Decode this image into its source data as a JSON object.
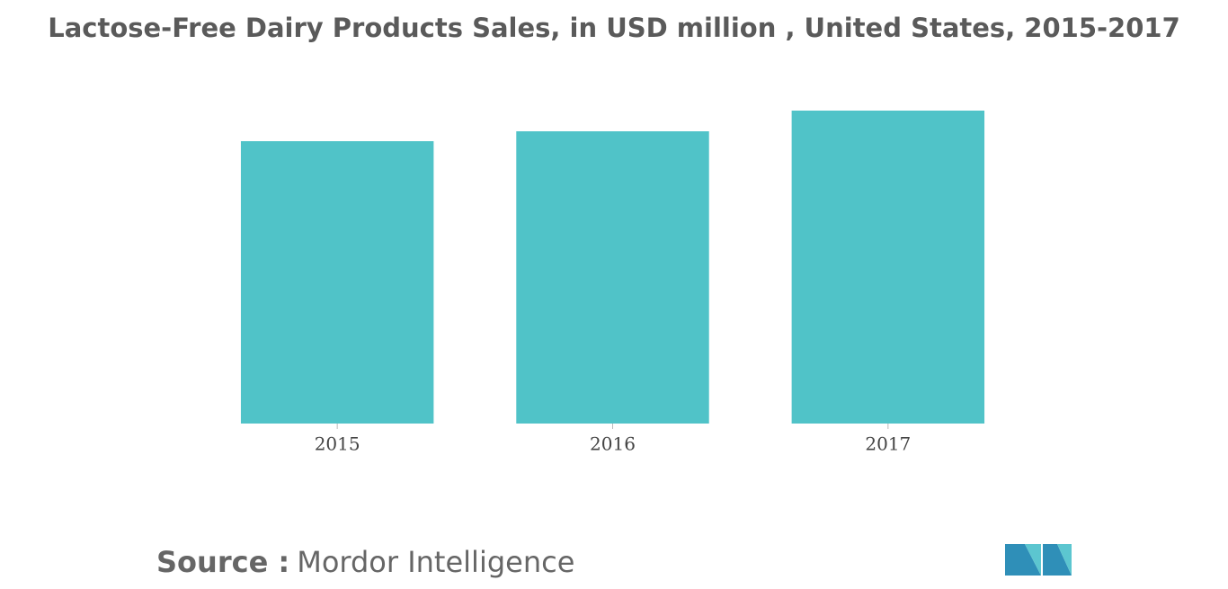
{
  "chart_data": {
    "type": "bar",
    "title": "Lactose-Free Dairy Products Sales, in USD million , United States, 2015-2017",
    "categories": [
      "2015",
      "2016",
      "2017"
    ],
    "values": [
      314,
      325,
      348
    ],
    "color": "#50c3c8",
    "ylim": [
      0,
      350
    ]
  },
  "footer": {
    "source_label": "Source :",
    "source": "Mordor Intelligence"
  }
}
